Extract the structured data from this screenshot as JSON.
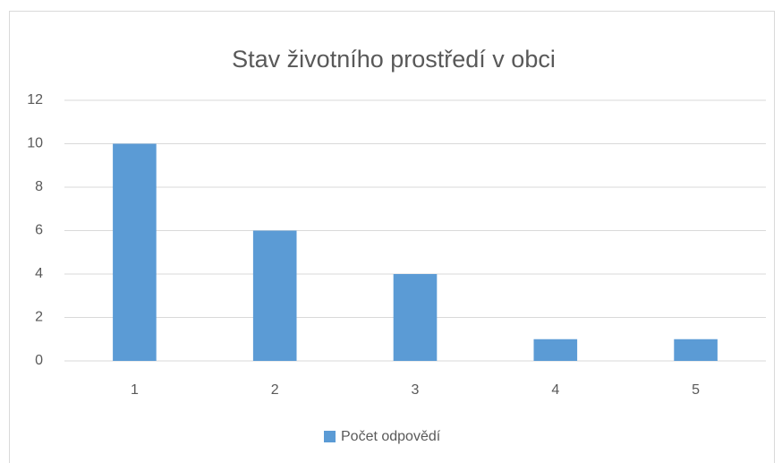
{
  "chart_data": {
    "type": "bar",
    "title": "Stav životního prostředí v obci",
    "categories": [
      "1",
      "2",
      "3",
      "4",
      "5"
    ],
    "series": [
      {
        "name": "Počet odpovědí",
        "color": "#5b9bd5",
        "values": [
          10,
          6,
          4,
          1,
          1
        ]
      }
    ],
    "ylim": [
      0,
      12
    ],
    "yticks": [
      0,
      2,
      4,
      6,
      8,
      10,
      12
    ],
    "grid": true,
    "legend": "bottom"
  }
}
